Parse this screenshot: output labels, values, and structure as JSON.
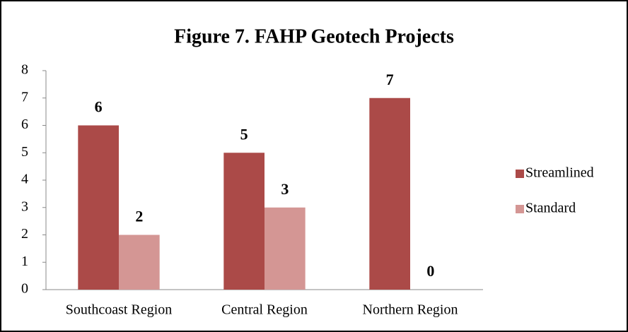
{
  "chart_data": {
    "type": "bar",
    "title": "Figure 7. FAHP Geotech Projects",
    "categories": [
      "Southcoast Region",
      "Central Region",
      "Northern Region"
    ],
    "series": [
      {
        "name": "Streamlined",
        "color": "#ab4a48",
        "values": [
          6,
          5,
          7
        ]
      },
      {
        "name": "Standard",
        "color": "#d49694",
        "values": [
          2,
          3,
          0
        ]
      }
    ],
    "ylim": [
      0,
      8
    ],
    "yticks": [
      0,
      1,
      2,
      3,
      4,
      5,
      6,
      7,
      8
    ],
    "grid": false,
    "legend": "right",
    "data_labels": true
  }
}
